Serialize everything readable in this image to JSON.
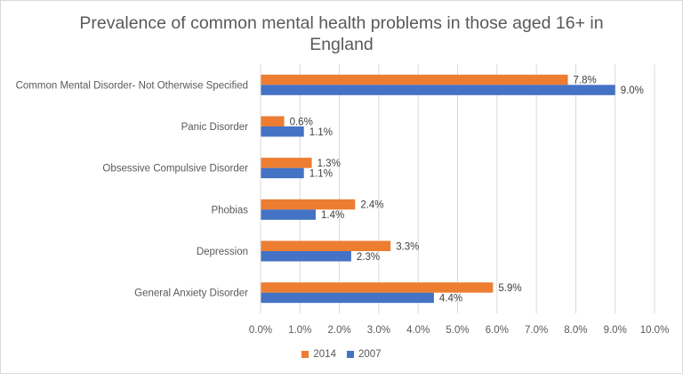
{
  "chart_data": {
    "type": "bar",
    "orientation": "horizontal",
    "title": "Prevalence of common mental health problems in those aged 16+ in England",
    "categories": [
      "Common Mental Disorder- Not Otherwise Specified",
      "Panic Disorder",
      "Obsessive Compulsive Disorder",
      "Phobias",
      "Depression",
      "General Anxiety Disorder"
    ],
    "series": [
      {
        "name": "2014",
        "color": "#ed7d31",
        "values": [
          7.8,
          0.6,
          1.3,
          2.4,
          3.3,
          5.9
        ],
        "labels": [
          "7.8%",
          "0.6%",
          "1.3%",
          "2.4%",
          "3.3%",
          "5.9%"
        ]
      },
      {
        "name": "2007",
        "color": "#4472c4",
        "values": [
          9.0,
          1.1,
          1.1,
          1.4,
          2.3,
          4.4
        ],
        "labels": [
          "9.0%",
          "1.1%",
          "1.1%",
          "1.4%",
          "2.3%",
          "4.4%"
        ]
      }
    ],
    "xlim": [
      0,
      10
    ],
    "xticks": [
      "0.0%",
      "1.0%",
      "2.0%",
      "3.0%",
      "4.0%",
      "5.0%",
      "6.0%",
      "7.0%",
      "8.0%",
      "9.0%",
      "10.0%"
    ],
    "grid": true,
    "legend_position": "bottom"
  }
}
